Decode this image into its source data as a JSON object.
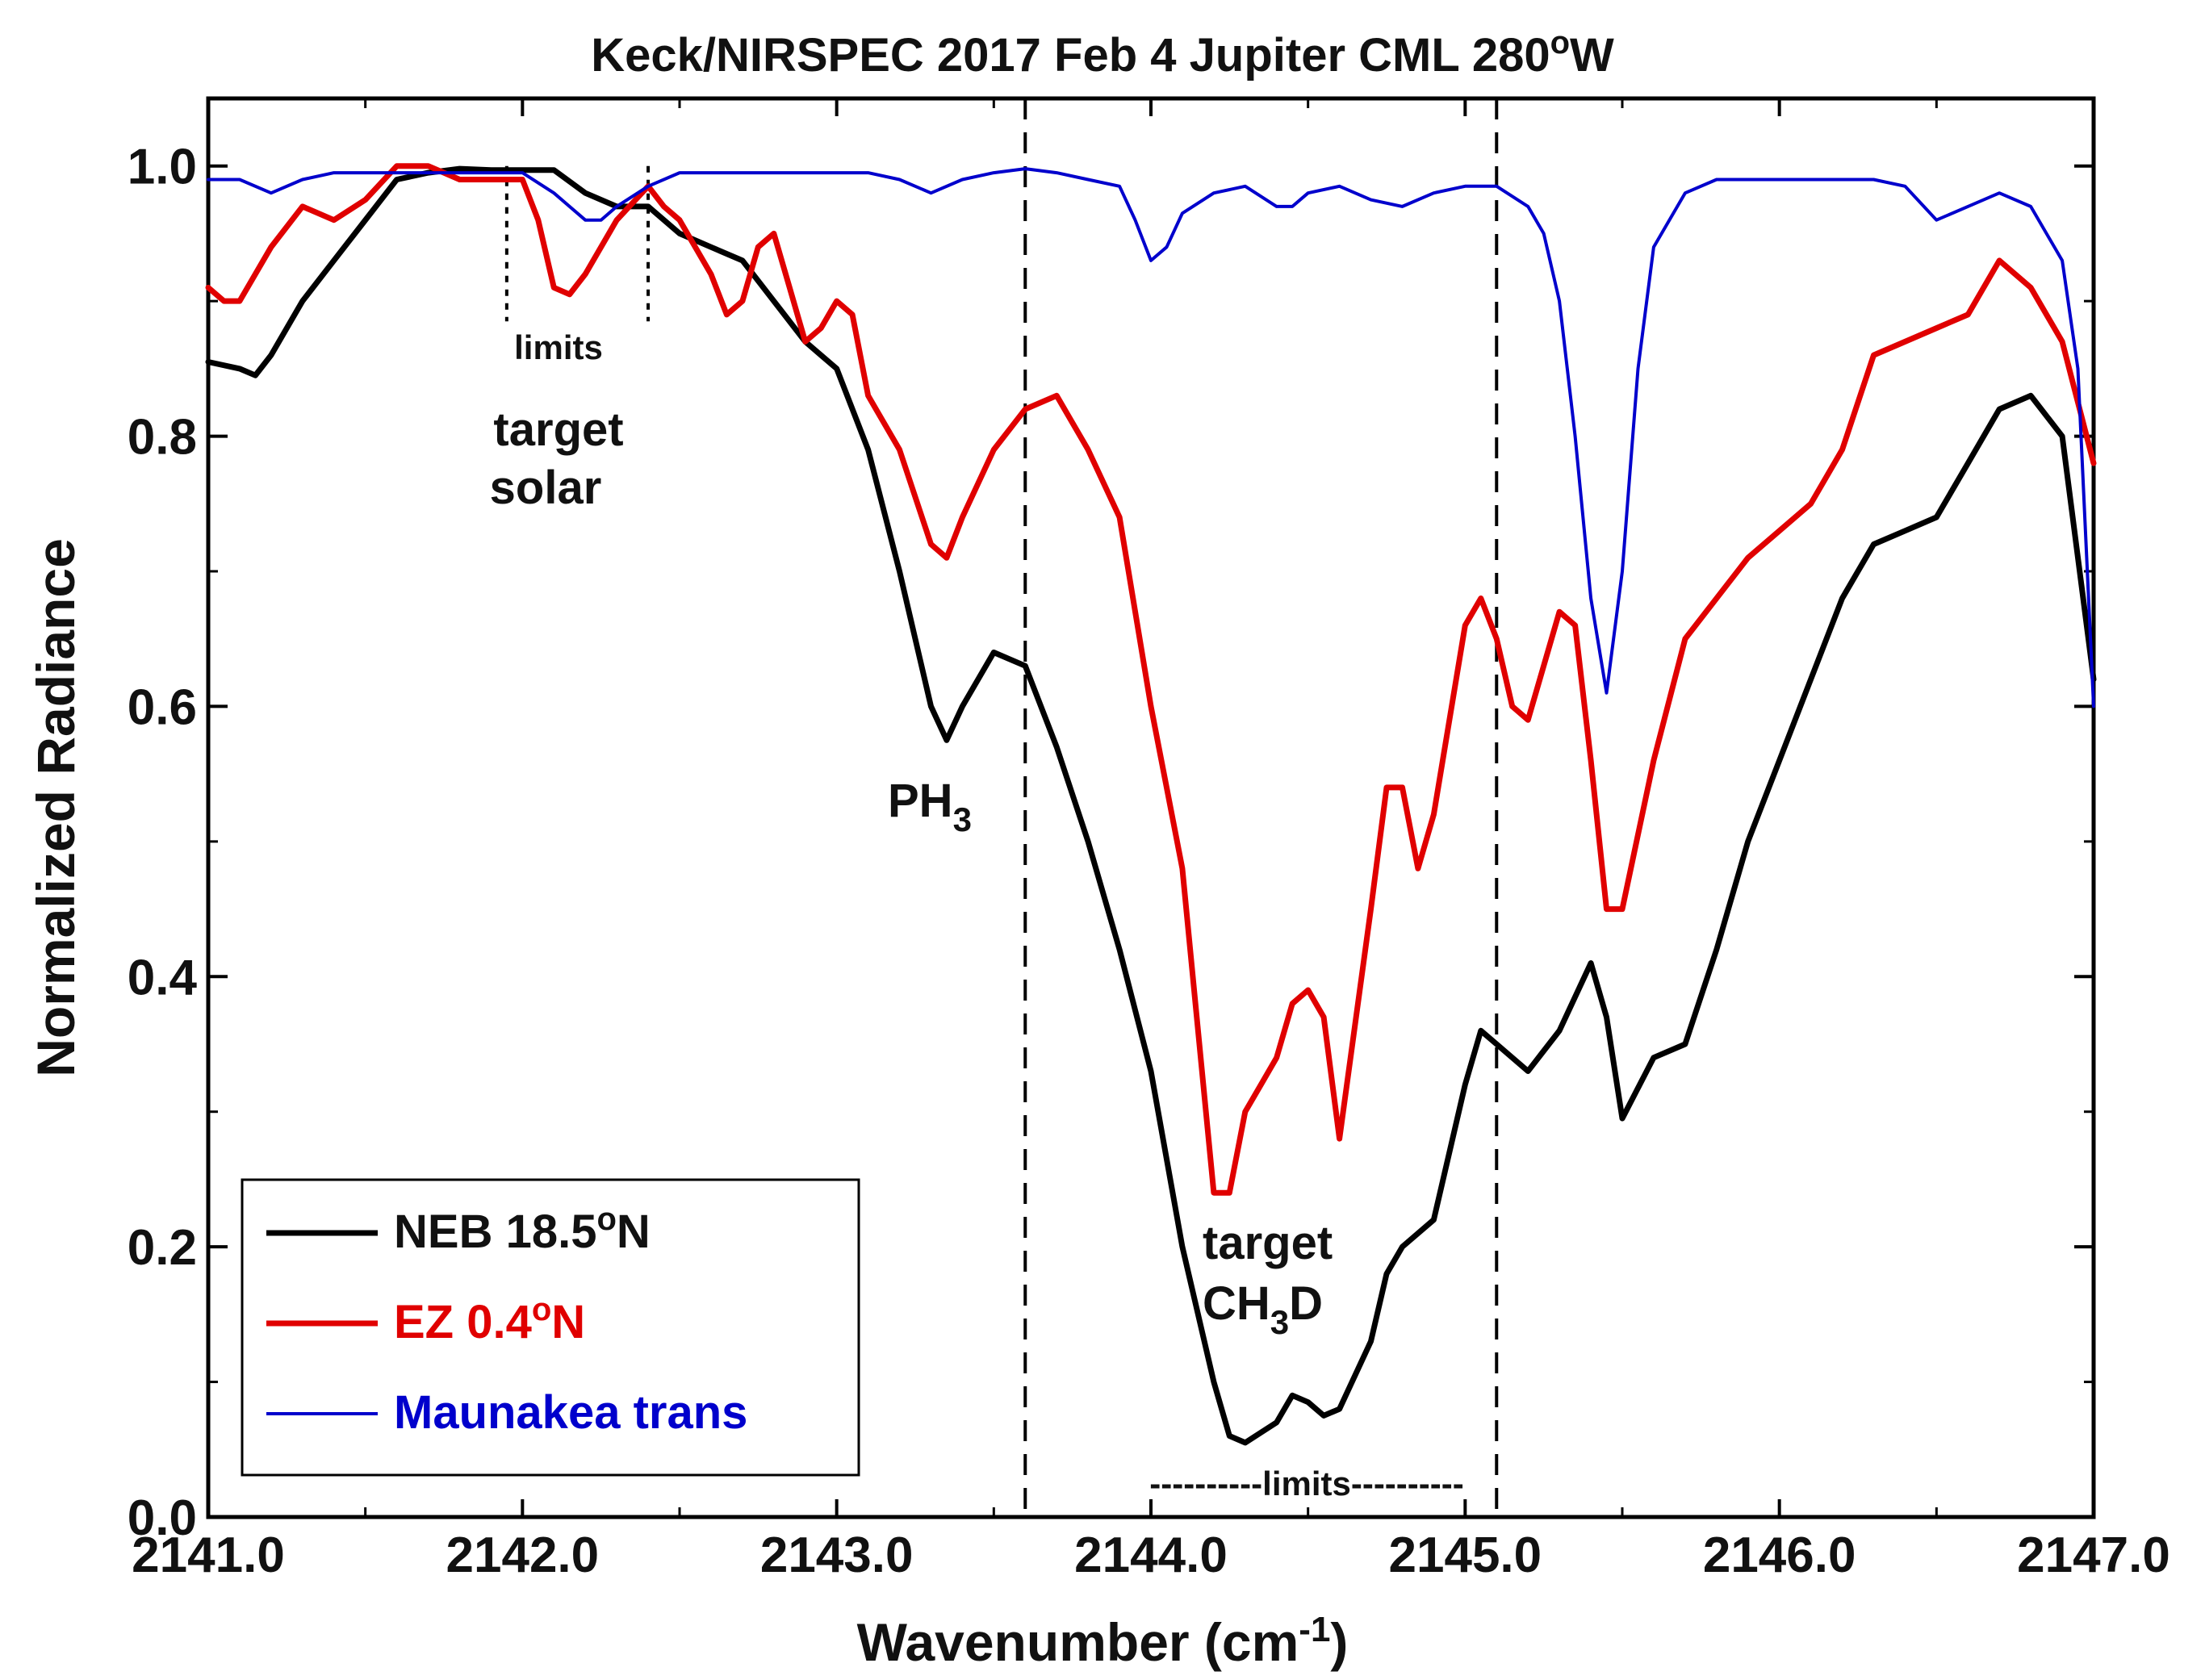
{
  "chart_data": {
    "type": "line",
    "title_main": "Keck/NIRSPEC 2017 Feb 4 Jupiter CML 280",
    "title_deg": "o",
    "title_tail": "W",
    "xlabel_main": "Wavenumber (cm",
    "xlabel_sup": "-1",
    "xlabel_tail": ")",
    "ylabel": "Normalized Radiance",
    "xlim": [
      2141.0,
      2147.0
    ],
    "ylim": [
      0.0,
      1.05
    ],
    "x_ticks": [
      2141.0,
      2142.0,
      2143.0,
      2144.0,
      2145.0,
      2146.0,
      2147.0
    ],
    "x_tick_labels": [
      "2141.0",
      "2142.0",
      "2143.0",
      "2144.0",
      "2145.0",
      "2146.0",
      "2147.0"
    ],
    "y_ticks": [
      0.0,
      0.2,
      0.4,
      0.6,
      0.8,
      1.0
    ],
    "y_tick_labels": [
      "0.0",
      "0.2",
      "0.4",
      "0.6",
      "0.8",
      "1.0"
    ],
    "series": [
      {
        "name": "NEB 18.5°N",
        "color": "#000000",
        "x": [
          2141.0,
          2141.1,
          2141.15,
          2141.2,
          2141.3,
          2141.4,
          2141.5,
          2141.6,
          2141.7,
          2141.8,
          2141.9,
          2142.0,
          2142.1,
          2142.2,
          2142.3,
          2142.4,
          2142.5,
          2142.6,
          2142.7,
          2142.8,
          2142.9,
          2143.0,
          2143.1,
          2143.2,
          2143.3,
          2143.35,
          2143.4,
          2143.5,
          2143.6,
          2143.7,
          2143.8,
          2143.9,
          2144.0,
          2144.1,
          2144.2,
          2144.25,
          2144.3,
          2144.4,
          2144.45,
          2144.5,
          2144.55,
          2144.6,
          2144.7,
          2144.75,
          2144.8,
          2144.9,
          2145.0,
          2145.05,
          2145.1,
          2145.2,
          2145.3,
          2145.4,
          2145.45,
          2145.5,
          2145.6,
          2145.7,
          2145.8,
          2145.9,
          2146.0,
          2146.1,
          2146.2,
          2146.3,
          2146.4,
          2146.5,
          2146.6,
          2146.7,
          2146.8,
          2146.9,
          2147.0
        ],
        "y": [
          0.855,
          0.85,
          0.845,
          0.86,
          0.9,
          0.93,
          0.96,
          0.99,
          0.995,
          0.998,
          0.997,
          0.997,
          0.997,
          0.98,
          0.97,
          0.97,
          0.95,
          0.94,
          0.93,
          0.9,
          0.87,
          0.85,
          0.79,
          0.7,
          0.6,
          0.575,
          0.6,
          0.64,
          0.63,
          0.57,
          0.5,
          0.42,
          0.33,
          0.2,
          0.1,
          0.06,
          0.055,
          0.07,
          0.09,
          0.085,
          0.075,
          0.08,
          0.13,
          0.18,
          0.2,
          0.22,
          0.32,
          0.36,
          0.35,
          0.33,
          0.36,
          0.41,
          0.37,
          0.295,
          0.34,
          0.35,
          0.42,
          0.5,
          0.56,
          0.62,
          0.68,
          0.72,
          0.73,
          0.74,
          0.78,
          0.82,
          0.83,
          0.8,
          0.62
        ]
      },
      {
        "name": "EZ 0.4°N",
        "color": "#e00000",
        "x": [
          2141.0,
          2141.05,
          2141.1,
          2141.2,
          2141.3,
          2141.4,
          2141.5,
          2141.6,
          2141.7,
          2141.8,
          2141.9,
          2142.0,
          2142.05,
          2142.1,
          2142.15,
          2142.2,
          2142.3,
          2142.4,
          2142.45,
          2142.5,
          2142.6,
          2142.65,
          2142.7,
          2142.75,
          2142.8,
          2142.85,
          2142.9,
          2142.95,
          2143.0,
          2143.05,
          2143.1,
          2143.2,
          2143.3,
          2143.35,
          2143.4,
          2143.5,
          2143.6,
          2143.7,
          2143.8,
          2143.9,
          2144.0,
          2144.1,
          2144.2,
          2144.25,
          2144.3,
          2144.35,
          2144.4,
          2144.45,
          2144.5,
          2144.55,
          2144.6,
          2144.7,
          2144.75,
          2144.8,
          2144.85,
          2144.9,
          2145.0,
          2145.05,
          2145.1,
          2145.15,
          2145.2,
          2145.3,
          2145.35,
          2145.4,
          2145.45,
          2145.5,
          2145.6,
          2145.7,
          2145.8,
          2145.9,
          2146.0,
          2146.1,
          2146.2,
          2146.3,
          2146.4,
          2146.5,
          2146.6,
          2146.7,
          2146.8,
          2146.9,
          2147.0
        ],
        "y": [
          0.91,
          0.9,
          0.9,
          0.94,
          0.97,
          0.96,
          0.975,
          1.0,
          1.0,
          0.99,
          0.99,
          0.99,
          0.96,
          0.91,
          0.905,
          0.92,
          0.96,
          0.985,
          0.97,
          0.96,
          0.92,
          0.89,
          0.9,
          0.94,
          0.95,
          0.91,
          0.87,
          0.88,
          0.9,
          0.89,
          0.83,
          0.79,
          0.72,
          0.71,
          0.74,
          0.79,
          0.82,
          0.83,
          0.79,
          0.74,
          0.6,
          0.48,
          0.24,
          0.24,
          0.3,
          0.32,
          0.34,
          0.38,
          0.39,
          0.37,
          0.28,
          0.45,
          0.54,
          0.54,
          0.48,
          0.52,
          0.66,
          0.68,
          0.65,
          0.6,
          0.59,
          0.67,
          0.66,
          0.56,
          0.45,
          0.45,
          0.56,
          0.65,
          0.68,
          0.71,
          0.73,
          0.75,
          0.79,
          0.86,
          0.87,
          0.88,
          0.89,
          0.93,
          0.91,
          0.87,
          0.78
        ]
      },
      {
        "name": "Maunakea trans",
        "color": "#0000cc",
        "x": [
          2141.0,
          2141.1,
          2141.2,
          2141.3,
          2141.4,
          2141.5,
          2141.6,
          2141.7,
          2141.8,
          2141.9,
          2142.0,
          2142.1,
          2142.2,
          2142.25,
          2142.3,
          2142.4,
          2142.5,
          2142.6,
          2142.7,
          2142.8,
          2142.9,
          2143.0,
          2143.1,
          2143.2,
          2143.3,
          2143.4,
          2143.5,
          2143.6,
          2143.7,
          2143.8,
          2143.9,
          2143.95,
          2144.0,
          2144.05,
          2144.1,
          2144.2,
          2144.3,
          2144.4,
          2144.45,
          2144.5,
          2144.6,
          2144.7,
          2144.8,
          2144.9,
          2145.0,
          2145.1,
          2145.2,
          2145.25,
          2145.3,
          2145.35,
          2145.4,
          2145.45,
          2145.5,
          2145.55,
          2145.6,
          2145.7,
          2145.8,
          2145.9,
          2146.0,
          2146.1,
          2146.2,
          2146.3,
          2146.4,
          2146.5,
          2146.6,
          2146.7,
          2146.8,
          2146.9,
          2146.95,
          2147.0
        ],
        "y": [
          0.99,
          0.99,
          0.98,
          0.99,
          0.995,
          0.995,
          0.995,
          0.995,
          0.995,
          0.995,
          0.995,
          0.98,
          0.96,
          0.96,
          0.97,
          0.985,
          0.995,
          0.995,
          0.995,
          0.995,
          0.995,
          0.995,
          0.995,
          0.99,
          0.98,
          0.99,
          0.995,
          0.998,
          0.995,
          0.99,
          0.985,
          0.96,
          0.93,
          0.94,
          0.965,
          0.98,
          0.985,
          0.97,
          0.97,
          0.98,
          0.985,
          0.975,
          0.97,
          0.98,
          0.985,
          0.985,
          0.97,
          0.95,
          0.9,
          0.8,
          0.68,
          0.61,
          0.7,
          0.85,
          0.94,
          0.98,
          0.99,
          0.99,
          0.99,
          0.99,
          0.99,
          0.99,
          0.985,
          0.96,
          0.97,
          0.98,
          0.97,
          0.93,
          0.85,
          0.6
        ]
      }
    ],
    "vlines": [
      {
        "x": 2141.95,
        "style": "dotted",
        "ymax": 1.0
      },
      {
        "x": 2142.4,
        "style": "dotted",
        "ymax": 1.0
      },
      {
        "x": 2143.6,
        "style": "dashed",
        "ymax": 1.05
      },
      {
        "x": 2145.1,
        "style": "dashed",
        "ymax": 1.05
      }
    ],
    "annotations": {
      "solar_limits": "limits",
      "target_solar_1": "target",
      "target_solar_2": "solar",
      "ph3_main": "PH",
      "ph3_sub": "3",
      "target_ch3d_1": "target",
      "ch3d_a": "CH",
      "ch3d_sub": "3",
      "ch3d_b": "D",
      "ch3d_limits": "----------limits----------"
    },
    "legend": {
      "placement": "bottom-left",
      "items": [
        {
          "main": "NEB 18.5",
          "deg": "o",
          "tail": "N",
          "color": "#000000",
          "text_color": "#111111",
          "thick": true
        },
        {
          "main": "EZ 0.4",
          "deg": "o",
          "tail": "N",
          "color": "#e00000",
          "text_color": "#e00000",
          "thick": true
        },
        {
          "main": "Maunakea trans",
          "deg": "",
          "tail": "",
          "color": "#0000cc",
          "text_color": "#0000cc",
          "thick": false
        }
      ]
    }
  }
}
